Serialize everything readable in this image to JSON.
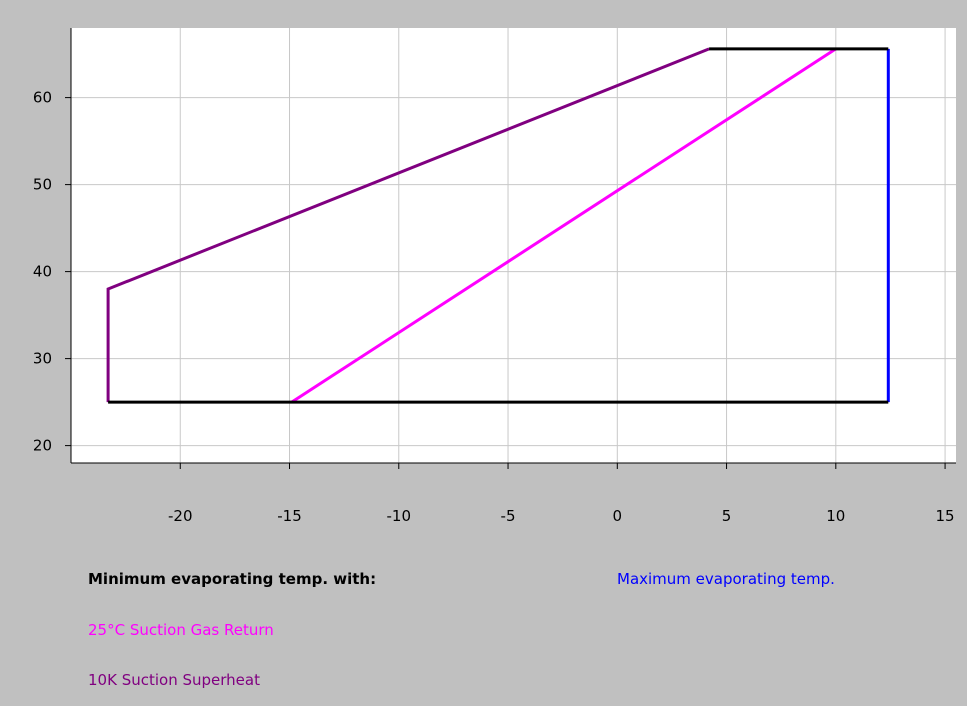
{
  "chart_data": {
    "type": "line",
    "xlabel": "",
    "ylabel": "",
    "xlim": [
      -25,
      15.5
    ],
    "ylim": [
      18,
      68
    ],
    "x_ticks": [
      -20,
      -15,
      -10,
      -5,
      0,
      5,
      10,
      15
    ],
    "y_ticks": [
      20,
      30,
      40,
      50,
      60
    ],
    "grid": true,
    "series": [
      {
        "name": "25°C Suction Gas Return",
        "color": "#ff00ff",
        "points": [
          [
            -14.9,
            25
          ],
          [
            10,
            65.6
          ]
        ]
      },
      {
        "name": "10K Suction Superheat",
        "color": "#800080",
        "points": [
          [
            -23.3,
            25
          ],
          [
            -23.3,
            38
          ],
          [
            4.2,
            65.6
          ]
        ]
      },
      {
        "name": "Maximum evaporating temp.",
        "color": "#0000ff",
        "points": [
          [
            12.4,
            25
          ],
          [
            12.4,
            65.6
          ]
        ]
      },
      {
        "name": "",
        "color": "#000000",
        "points": [
          [
            -23.3,
            25
          ],
          [
            12.4,
            25
          ]
        ]
      },
      {
        "name": "",
        "color": "#000000",
        "points": [
          [
            4.2,
            65.6
          ],
          [
            12.4,
            65.6
          ]
        ]
      }
    ],
    "legend": {
      "title": "Minimum evaporating temp. with:",
      "entries": [
        {
          "label": "25°C Suction Gas Return",
          "color": "#ff00ff"
        },
        {
          "label": "10K Suction Superheat",
          "color": "#800080"
        },
        {
          "label": "Maximum evaporating temp.",
          "color": "#0000ff"
        }
      ],
      "placement": "bottom"
    }
  }
}
